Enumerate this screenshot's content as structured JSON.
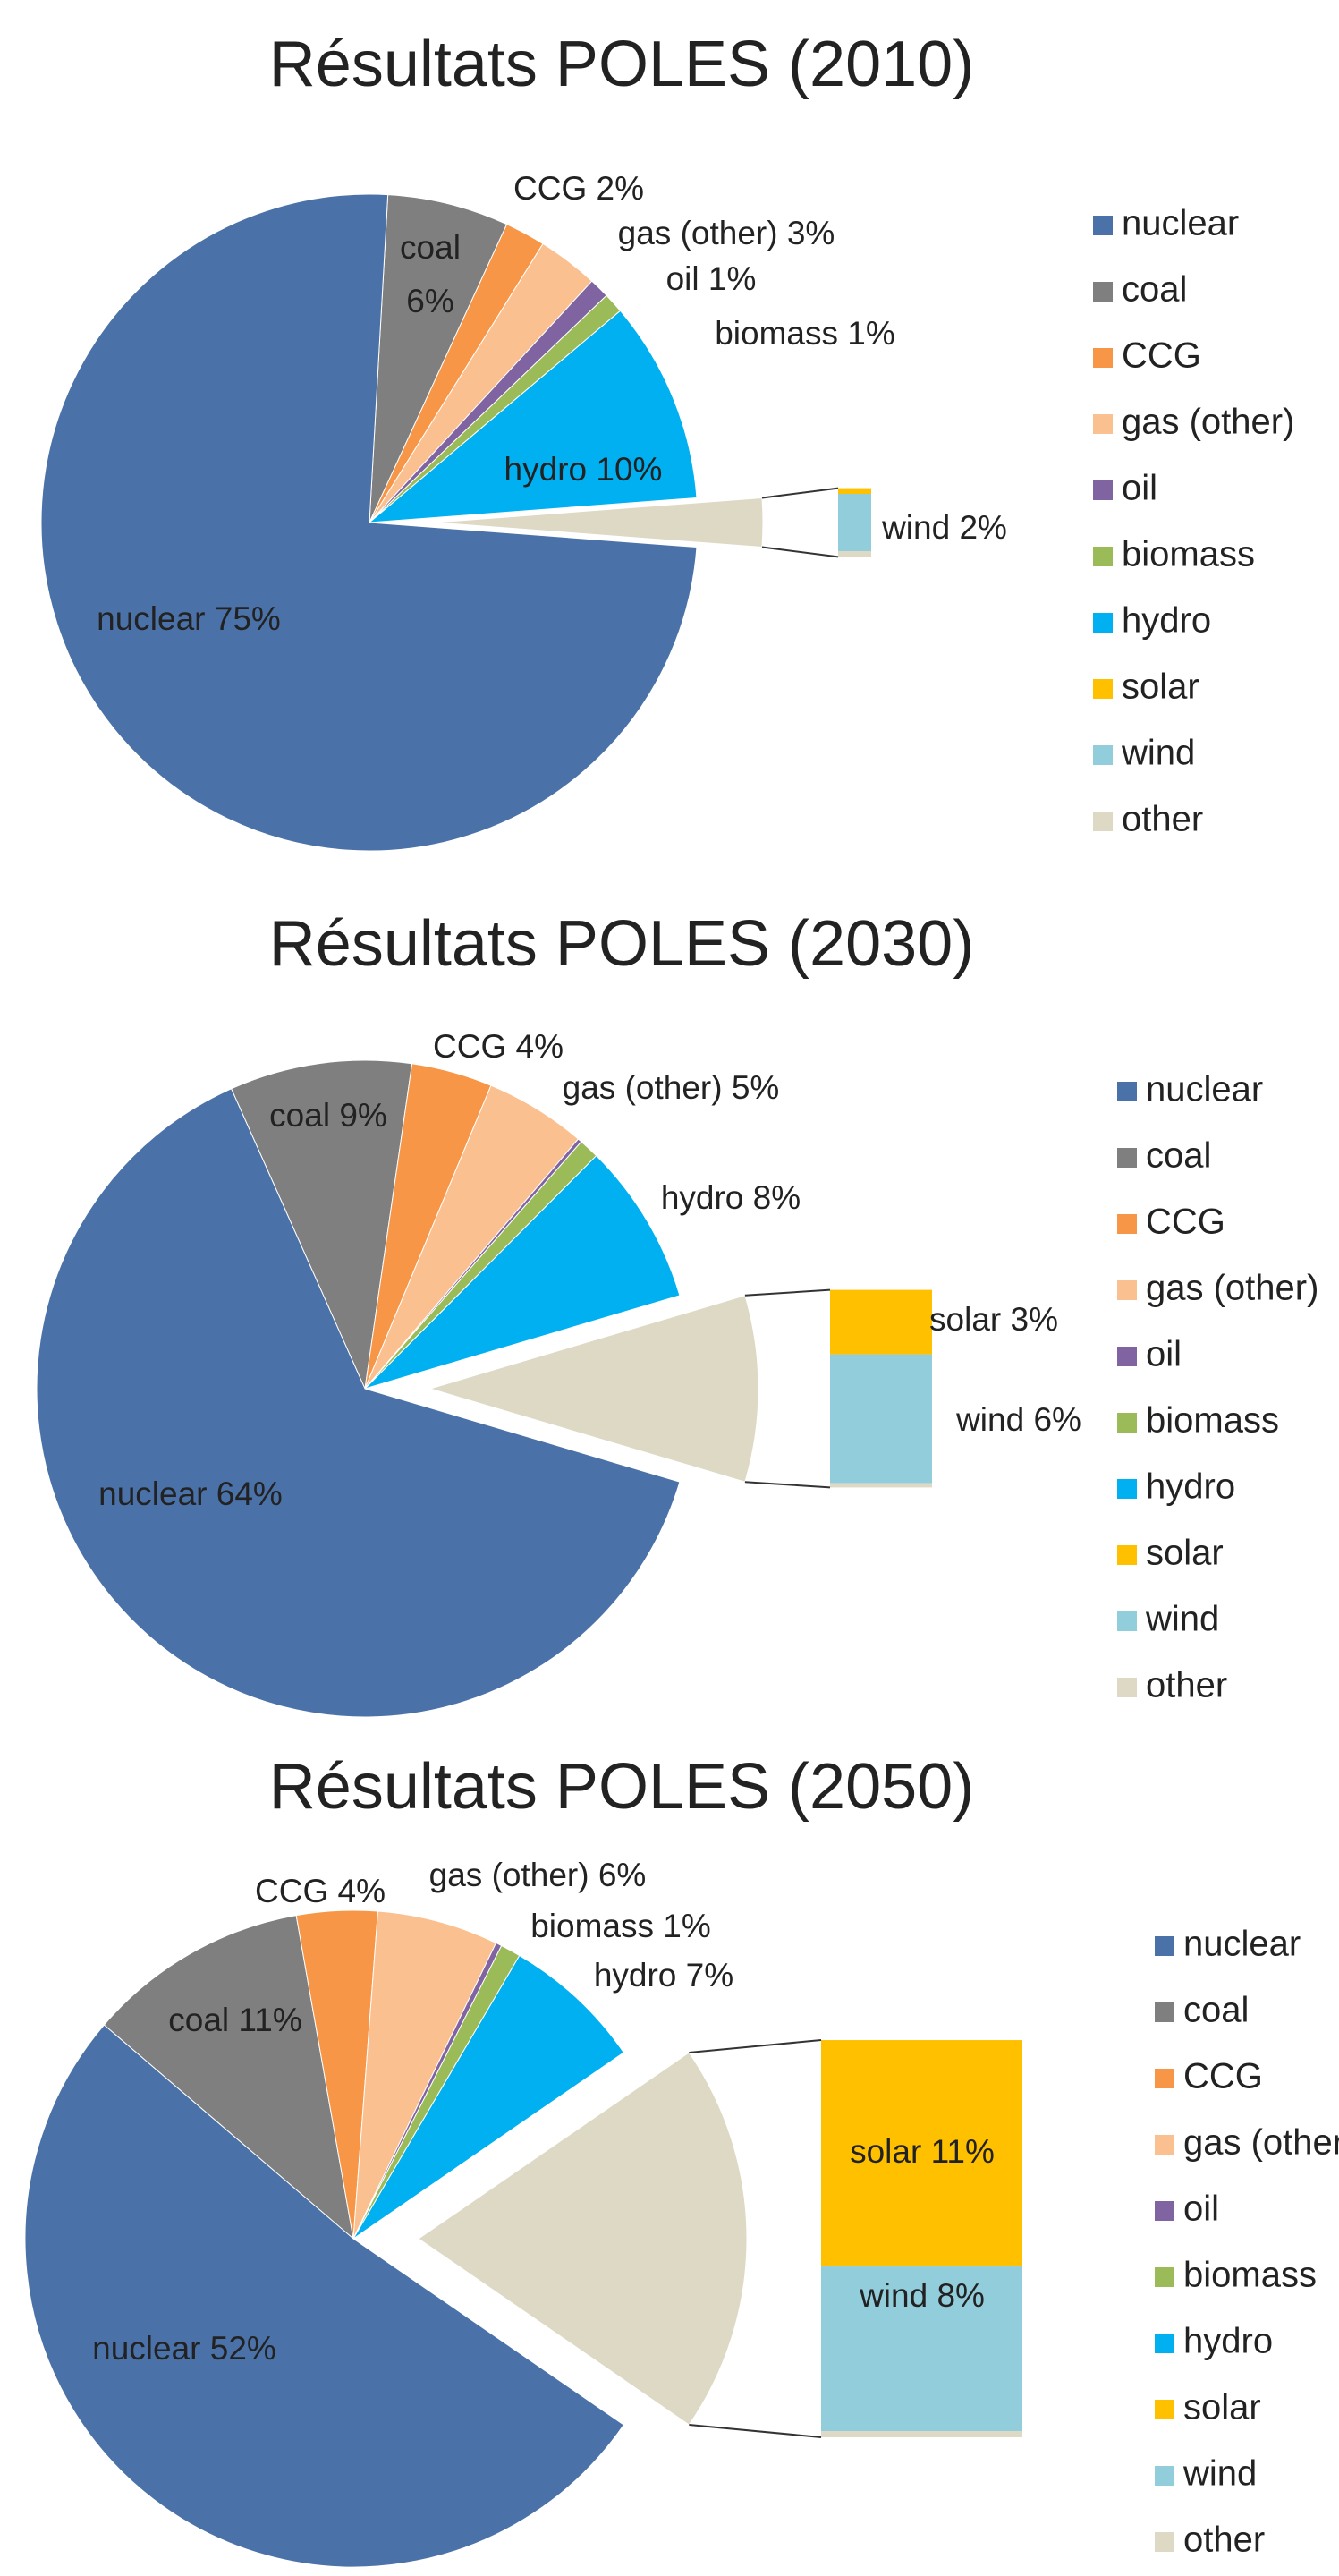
{
  "chart_data": [
    {
      "type": "pie",
      "title": "Résultats POLES (2010)",
      "categories": [
        "nuclear",
        "coal",
        "CCG",
        "gas (other)",
        "oil",
        "biomass",
        "hydro",
        "solar",
        "wind",
        "other"
      ],
      "values": [
        75,
        6,
        2,
        3,
        1,
        1,
        10,
        0.2,
        2,
        0.2
      ],
      "value_labels": [
        "75%",
        "6%",
        "2%",
        "3%",
        "1%",
        "1%",
        "10%",
        null,
        "2%",
        null
      ],
      "colors": [
        "#4a72a8",
        "#7f7f7f",
        "#f79646",
        "#fac090",
        "#8064a2",
        "#9bbb59",
        "#00b0f0",
        "#ffc000",
        "#92cddc",
        "#ddd9c4"
      ]
    },
    {
      "type": "pie",
      "title": "Résultats POLES (2030)",
      "categories": [
        "nuclear",
        "coal",
        "CCG",
        "gas (other)",
        "oil",
        "biomass",
        "hydro",
        "solar",
        "wind",
        "other"
      ],
      "values": [
        64,
        9,
        4,
        5,
        0.2,
        1,
        8,
        3,
        6,
        0.2
      ],
      "value_labels": [
        "64%",
        "9%",
        "4%",
        "5%",
        null,
        null,
        "8%",
        "3%",
        "6%",
        null
      ],
      "colors": [
        "#4a72a8",
        "#7f7f7f",
        "#f79646",
        "#fac090",
        "#8064a2",
        "#9bbb59",
        "#00b0f0",
        "#ffc000",
        "#92cddc",
        "#ddd9c4"
      ]
    },
    {
      "type": "pie",
      "title": "Résultats POLES (2050)",
      "categories": [
        "nuclear",
        "coal",
        "CCG",
        "gas (other)",
        "oil",
        "biomass",
        "hydro",
        "solar",
        "wind",
        "other"
      ],
      "values": [
        52,
        11,
        4,
        6,
        0.3,
        1,
        7,
        11,
        8,
        0.3
      ],
      "value_labels": [
        "52%",
        "11%",
        "4%",
        "6%",
        null,
        "1%",
        "7%",
        "11%",
        "8%",
        null
      ],
      "colors": [
        "#4a72a8",
        "#7f7f7f",
        "#f79646",
        "#fac090",
        "#8064a2",
        "#9bbb59",
        "#00b0f0",
        "#ffc000",
        "#92cddc",
        "#ddd9c4"
      ]
    }
  ]
}
